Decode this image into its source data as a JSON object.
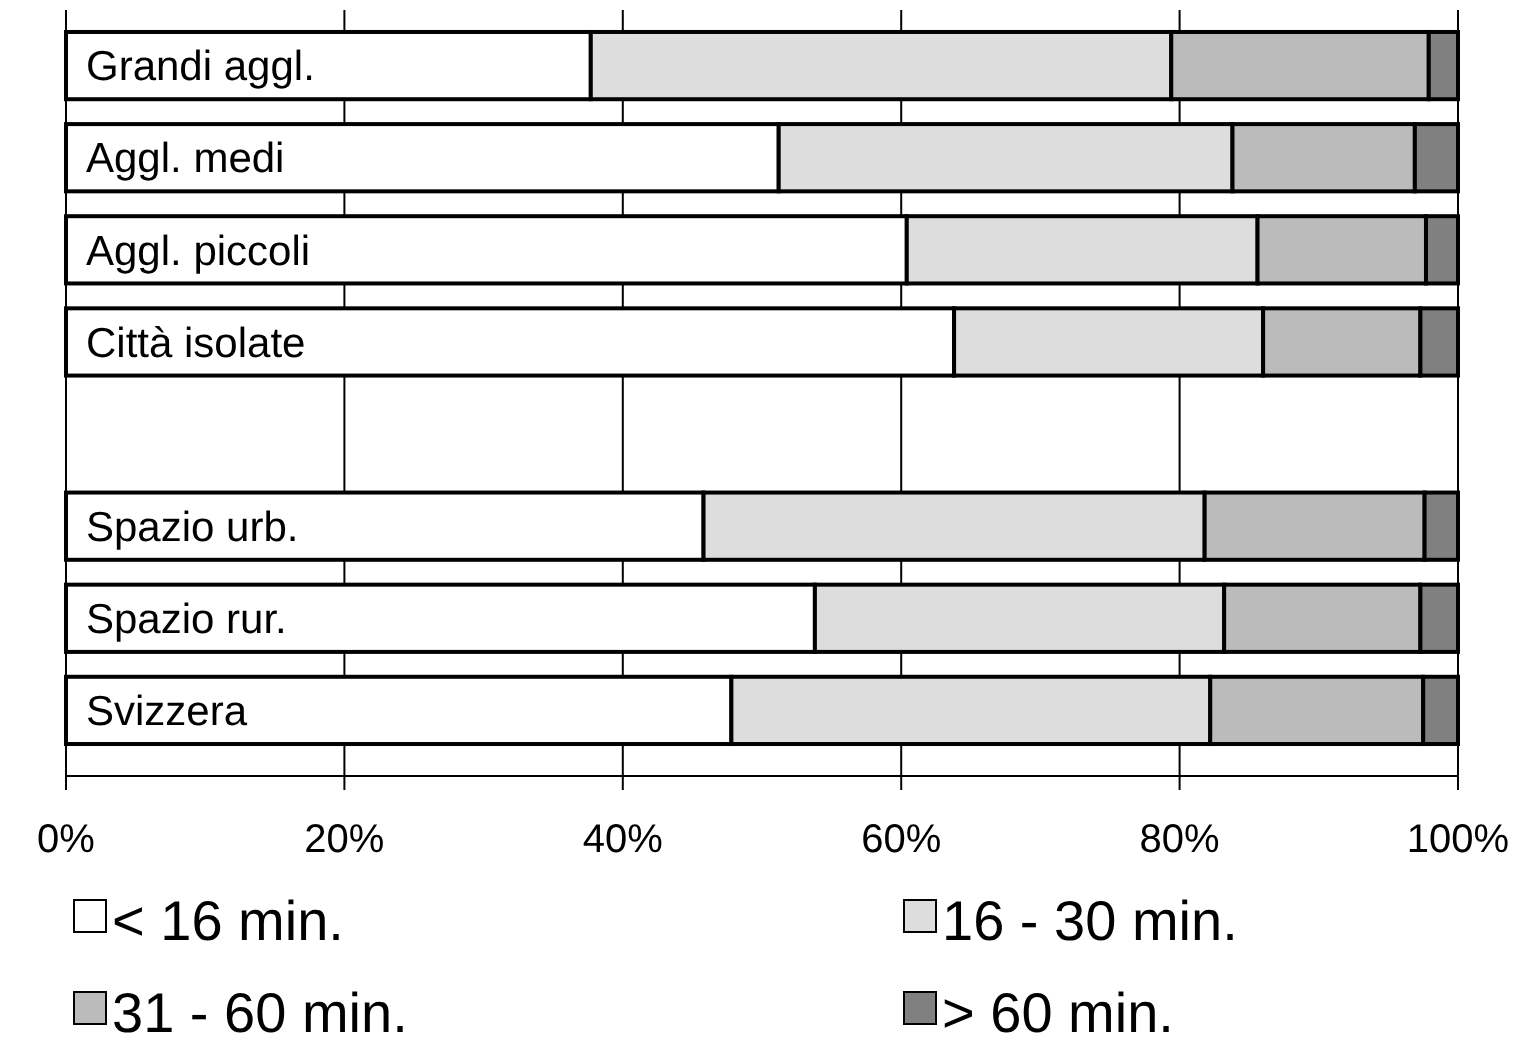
{
  "chart_data": {
    "type": "bar",
    "orientation": "horizontal",
    "stacked": true,
    "categories": [
      "Grandi aggl.",
      "Aggl. medi",
      "Aggl. piccoli",
      "Città isolate",
      null,
      "Spazio urb.",
      "Spazio rur.",
      "Svizzera"
    ],
    "series": [
      {
        "name": "< 16 min.",
        "color": "#ffffff",
        "values": [
          37.7,
          51.2,
          60.4,
          63.8,
          null,
          45.8,
          53.8,
          47.8
        ]
      },
      {
        "name": "16 - 30 min.",
        "color": "#dddddd",
        "values": [
          41.7,
          32.6,
          25.2,
          22.2,
          null,
          36.0,
          29.4,
          34.4
        ]
      },
      {
        "name": "31 - 60 min.",
        "color": "#bbbbbb",
        "values": [
          18.5,
          13.1,
          12.1,
          11.3,
          null,
          15.8,
          14.1,
          15.3
        ]
      },
      {
        "name": "> 60 min.",
        "color": "#808080",
        "values": [
          2.1,
          3.1,
          2.3,
          2.7,
          null,
          2.4,
          2.7,
          2.5
        ]
      }
    ],
    "xlim": [
      0,
      100
    ],
    "xticks": [
      {
        "value": 0,
        "label": "0%"
      },
      {
        "value": 20,
        "label": "20%"
      },
      {
        "value": 40,
        "label": "40%"
      },
      {
        "value": 60,
        "label": "60%"
      },
      {
        "value": 80,
        "label": "80%"
      },
      {
        "value": 100,
        "label": "100%"
      }
    ],
    "grid": "x",
    "legend": "bottom"
  }
}
